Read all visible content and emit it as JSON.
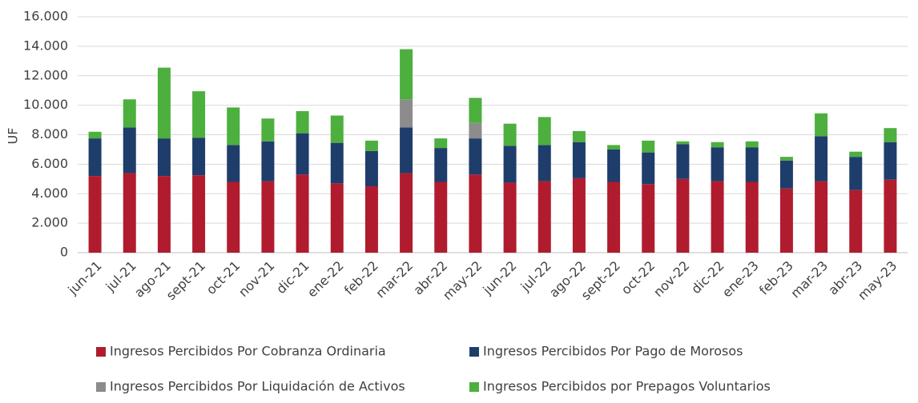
{
  "chart_data": {
    "type": "stacked-bar",
    "y_label": "UF",
    "categories": [
      "jun-21",
      "jul-21",
      "ago-21",
      "sept-21",
      "oct-21",
      "nov-21",
      "dic-21",
      "ene-22",
      "feb-22",
      "mar-22",
      "abr-22",
      "may-22",
      "jun-22",
      "jul-22",
      "ago-22",
      "sept-22",
      "oct-22",
      "nov-22",
      "dic-22",
      "ene-23",
      "feb-23",
      "mar-23",
      "abr-23",
      "may-23"
    ],
    "series": [
      {
        "name": "Ingresos Percibidos Por Cobranza Ordinaria",
        "color": "#b01c2e",
        "values": [
          5200,
          5400,
          5200,
          5250,
          4800,
          4850,
          5300,
          4700,
          4500,
          5400,
          4800,
          5300,
          4750,
          4850,
          5050,
          4800,
          4650,
          5000,
          4850,
          4800,
          4350,
          4850,
          4250,
          4950
        ]
      },
      {
        "name": "Ingresos Percibidos Por Pago de Morosos",
        "color": "#1f3d6b",
        "values": [
          2550,
          3100,
          2550,
          2550,
          2500,
          2700,
          2800,
          2750,
          2400,
          3100,
          2300,
          2450,
          2500,
          2450,
          2450,
          2200,
          2150,
          2350,
          2300,
          2350,
          1900,
          3050,
          2250,
          2550
        ]
      },
      {
        "name": "Ingresos Percibidos Por Liquidación de Activos",
        "color": "#8c8c8c",
        "values": [
          0,
          0,
          0,
          0,
          0,
          0,
          0,
          0,
          0,
          1900,
          0,
          1050,
          0,
          0,
          0,
          0,
          0,
          0,
          0,
          0,
          0,
          0,
          0,
          0
        ]
      },
      {
        "name": "Ingresos Percibidos por Prepagos Voluntarios",
        "color": "#4caf3e",
        "values": [
          450,
          1900,
          4800,
          3150,
          2550,
          1550,
          1500,
          1850,
          700,
          3400,
          650,
          1700,
          1500,
          1900,
          750,
          300,
          800,
          200,
          350,
          400,
          250,
          1550,
          350,
          950
        ]
      }
    ],
    "ylim": [
      0,
      16000
    ],
    "yticks": [
      0,
      {
        "value": 2000,
        "label": "2.000"
      },
      {
        "value": 4000,
        "label": "4.000"
      },
      {
        "value": 6000,
        "label": "6.000"
      },
      {
        "value": 8000,
        "label": "8.000"
      },
      {
        "value": 10000,
        "label": "10.000"
      },
      {
        "value": 12000,
        "label": "12.000"
      },
      {
        "value": 14000,
        "label": "14.000"
      },
      {
        "value": 16000,
        "label": "16.000"
      }
    ],
    "grid": true
  }
}
